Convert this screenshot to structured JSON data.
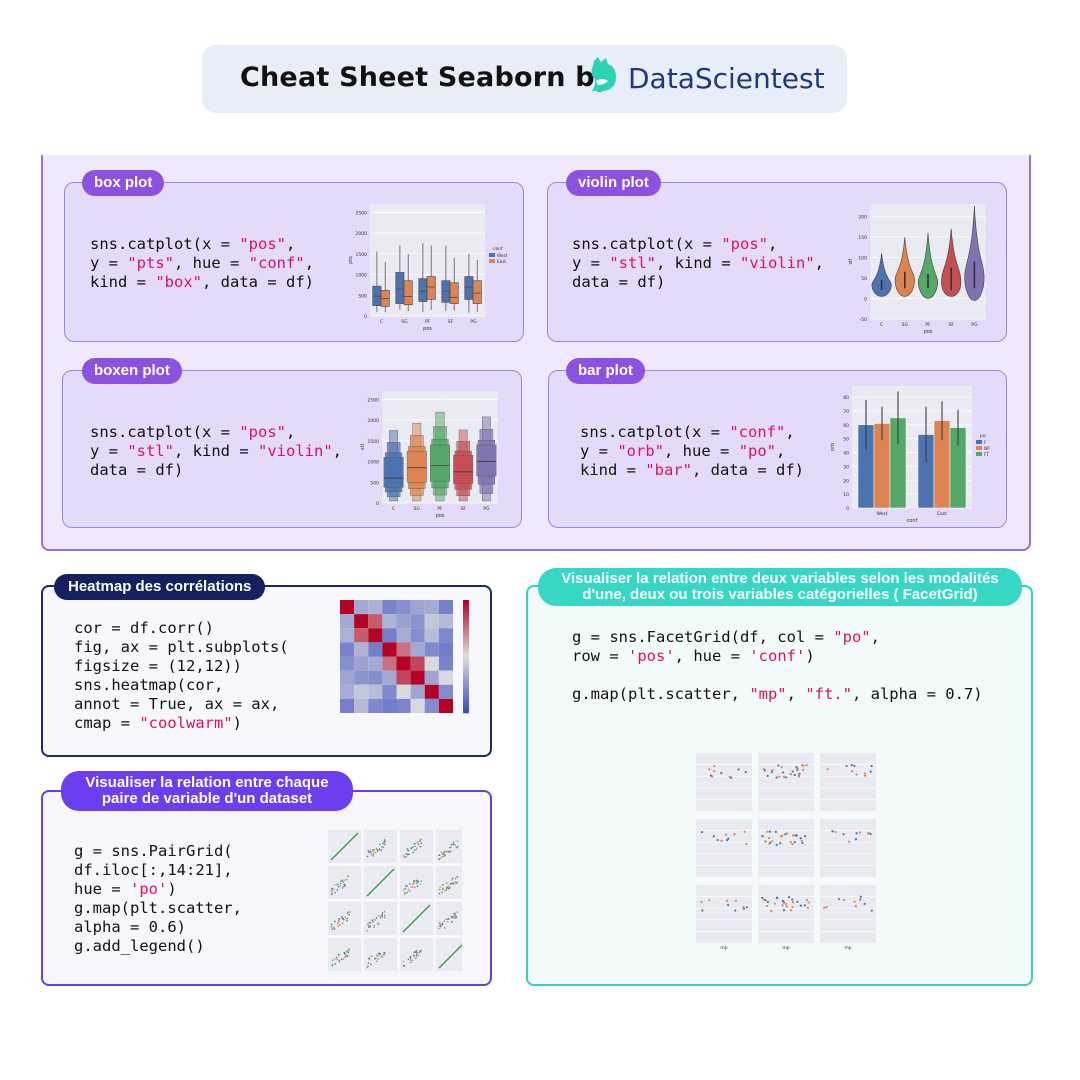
{
  "header": {
    "title": "Cheat Sheet Seaborn by",
    "brand": "DataScientest"
  },
  "cards": {
    "box": {
      "label": "box plot",
      "code": [
        [
          [
            "t",
            "sns.catplot(x "
          ],
          [
            "t",
            "= "
          ],
          [
            "s",
            "\"pos\""
          ],
          [
            "t",
            ","
          ]
        ],
        [
          [
            "t",
            "y "
          ],
          [
            "t",
            "= "
          ],
          [
            "s",
            "\"pts\""
          ],
          [
            "t",
            ", hue "
          ],
          [
            "t",
            "= "
          ],
          [
            "s",
            "\"conf\""
          ],
          [
            "t",
            ","
          ]
        ],
        [
          [
            "t",
            "kind "
          ],
          [
            "t",
            "= "
          ],
          [
            "s",
            "\"box\""
          ],
          [
            "t",
            ", data "
          ],
          [
            "t",
            "= "
          ],
          [
            "t",
            "df)"
          ]
        ]
      ]
    },
    "violin": {
      "label": "violin plot",
      "code": [
        [
          [
            "t",
            "sns.catplot(x "
          ],
          [
            "t",
            "= "
          ],
          [
            "s",
            "\"pos\""
          ],
          [
            "t",
            ","
          ]
        ],
        [
          [
            "t",
            "y "
          ],
          [
            "t",
            "= "
          ],
          [
            "s",
            "\"stl\""
          ],
          [
            "t",
            ", kind "
          ],
          [
            "t",
            "= "
          ],
          [
            "s",
            "\"violin\""
          ],
          [
            "t",
            ","
          ]
        ],
        [
          [
            "t",
            "data "
          ],
          [
            "t",
            "= "
          ],
          [
            "t",
            "df)"
          ]
        ]
      ]
    },
    "boxen": {
      "label": "boxen plot",
      "code": [
        [
          [
            "t",
            "sns.catplot(x "
          ],
          [
            "t",
            "= "
          ],
          [
            "s",
            "\"pos\""
          ],
          [
            "t",
            ","
          ]
        ],
        [
          [
            "t",
            "y "
          ],
          [
            "t",
            "= "
          ],
          [
            "s",
            "\"stl\""
          ],
          [
            "t",
            ", kind "
          ],
          [
            "t",
            "= "
          ],
          [
            "s",
            "\"violin\""
          ],
          [
            "t",
            ","
          ]
        ],
        [
          [
            "t",
            "data "
          ],
          [
            "t",
            "= "
          ],
          [
            "t",
            "df)"
          ]
        ]
      ]
    },
    "bar": {
      "label": "bar plot",
      "code": [
        [
          [
            "t",
            "sns.catplot(x "
          ],
          [
            "t",
            "= "
          ],
          [
            "s",
            "\"conf\""
          ],
          [
            "t",
            ","
          ]
        ],
        [
          [
            "t",
            "y "
          ],
          [
            "t",
            "= "
          ],
          [
            "s",
            "\"orb\""
          ],
          [
            "t",
            ", hue "
          ],
          [
            "t",
            "= "
          ],
          [
            "s",
            "\"po\""
          ],
          [
            "t",
            ","
          ]
        ],
        [
          [
            "t",
            "kind "
          ],
          [
            "t",
            "= "
          ],
          [
            "s",
            "\"bar\""
          ],
          [
            "t",
            ", data "
          ],
          [
            "t",
            "= "
          ],
          [
            "t",
            "df)"
          ]
        ]
      ]
    },
    "heatmap": {
      "label": "Heatmap des corrélations",
      "code": [
        [
          [
            "t",
            "cor = df.corr()"
          ]
        ],
        [
          [
            "t",
            "fig, ax = plt.subplots("
          ]
        ],
        [
          [
            "t",
            "figsize = (12,12))"
          ]
        ],
        [
          [
            "t",
            "sns.heatmap(cor,"
          ]
        ],
        [
          [
            "t",
            "annot = True, ax = ax,"
          ]
        ],
        [
          [
            "t",
            "cmap = "
          ],
          [
            "s",
            "\"coolwarm\""
          ],
          [
            "t",
            ")"
          ]
        ]
      ]
    },
    "pair": {
      "label_line1": "Visualiser la relation entre chaque",
      "label_line2": "paire de variable d'un dataset",
      "code": [
        [
          [
            "t",
            "g = sns.PairGrid("
          ]
        ],
        [
          [
            "t",
            "df.iloc[:,14:21],"
          ]
        ],
        [
          [
            "t",
            "hue = "
          ],
          [
            "s",
            "'po'"
          ],
          [
            "t",
            ")"
          ]
        ],
        [
          [
            "t",
            "g.map(plt.scatter,"
          ]
        ],
        [
          [
            "t",
            "alpha = 0.6)"
          ]
        ],
        [
          [
            "t",
            "g.add_legend()"
          ]
        ]
      ]
    },
    "facet": {
      "label_line1": "Visualiser la relation entre deux variables selon les modalités",
      "label_line2": "d'une, deux ou trois variables catégorielles ( FacetGrid)",
      "code": [
        [
          [
            "t",
            "g = sns.FacetGrid(df, col = "
          ],
          [
            "s",
            "\"po\""
          ],
          [
            "t",
            ","
          ]
        ],
        [
          [
            "t",
            "row = "
          ],
          [
            "s",
            "'pos'"
          ],
          [
            "t",
            ", hue = "
          ],
          [
            "s",
            "'conf'"
          ],
          [
            "t",
            ")"
          ]
        ],
        [
          [
            "t",
            ""
          ]
        ],
        [
          [
            "t",
            "g.map(plt.scatter, "
          ],
          [
            "s",
            "\"mp\""
          ],
          [
            "t",
            ", "
          ],
          [
            "s",
            "\"ft.\""
          ],
          [
            "t",
            ", alpha = 0.7)"
          ]
        ]
      ]
    }
  },
  "chart_data": [
    {
      "id": "box",
      "type": "box",
      "categories": [
        "C",
        "SG",
        "PF",
        "SF",
        "PG"
      ],
      "xlabel": "pos",
      "ylabel": "pts",
      "yticks": [
        0,
        500,
        1000,
        1500,
        2000,
        2500
      ],
      "ylim": [
        0,
        2700
      ],
      "legend": {
        "title": "conf",
        "entries": [
          "West",
          "East"
        ]
      },
      "colors": [
        "#4c72b0",
        "#dd8452"
      ],
      "series": [
        {
          "name": "West",
          "boxes": [
            [
              100,
              250,
              480,
              720,
              1550
            ],
            [
              150,
              300,
              650,
              1050,
              1700
            ],
            [
              100,
              350,
              600,
              900,
              1750
            ],
            [
              120,
              330,
              600,
              850,
              1700
            ],
            [
              80,
              400,
              700,
              950,
              1500
            ]
          ]
        },
        {
          "name": "East",
          "boxes": [
            [
              90,
              230,
              420,
              620,
              1300
            ],
            [
              120,
              270,
              470,
              850,
              1500
            ],
            [
              150,
              400,
              700,
              950,
              1700
            ],
            [
              130,
              300,
              450,
              800,
              1400
            ],
            [
              100,
              300,
              550,
              850,
              1350
            ]
          ]
        }
      ]
    },
    {
      "id": "violin",
      "type": "violin",
      "categories": [
        "C",
        "SG",
        "PF",
        "SF",
        "PG"
      ],
      "xlabel": "pos",
      "ylabel": "stl",
      "yticks": [
        -50,
        0,
        50,
        100,
        150,
        200
      ],
      "ylim": [
        -50,
        230
      ],
      "colors": [
        "#4c72b0",
        "#dd8452",
        "#55a868",
        "#c44e52",
        "#8172b2"
      ],
      "series": [
        {
          "values": [
            [
              5,
              20,
              33,
              45,
              110
            ],
            [
              5,
              25,
              45,
              65,
              150
            ],
            [
              0,
              25,
              40,
              60,
              160
            ],
            [
              5,
              20,
              40,
              75,
              170
            ],
            [
              -5,
              25,
              50,
              90,
              225
            ]
          ]
        }
      ]
    },
    {
      "id": "boxen",
      "type": "boxen",
      "categories": [
        "C",
        "SG",
        "PF",
        "SF",
        "PG"
      ],
      "xlabel": "pos",
      "ylabel": "stl",
      "yticks": [
        0,
        500,
        1000,
        1500,
        2000,
        2500
      ],
      "ylim": [
        0,
        2700
      ],
      "colors": [
        "#4c72b0",
        "#dd8452",
        "#55a868",
        "#c44e52",
        "#8172b2"
      ],
      "series": [
        {
          "values": [
            [
              50,
              380,
              600,
              1100
            ],
            [
              50,
              500,
              850,
              1250
            ],
            [
              50,
              520,
              900,
              1400
            ],
            [
              50,
              470,
              750,
              1150
            ],
            [
              50,
              650,
              1000,
              1400
            ]
          ]
        }
      ]
    },
    {
      "id": "bar",
      "type": "bar",
      "categories": [
        "West",
        "East"
      ],
      "xlabel": "conf",
      "ylabel": "orb",
      "yticks": [
        0,
        10,
        20,
        30,
        40,
        50,
        60,
        70,
        80
      ],
      "ylim": [
        0,
        88
      ],
      "legend": {
        "title": "po",
        "entries": [
          "F",
          "NP",
          "FT"
        ]
      },
      "colors": [
        "#4c72b0",
        "#dd8452",
        "#55a868"
      ],
      "series": [
        {
          "name": "F",
          "values": [
            60,
            53
          ],
          "err": [
            18,
            20
          ]
        },
        {
          "name": "NP",
          "values": [
            61,
            63
          ],
          "err": [
            12,
            14
          ]
        },
        {
          "name": "FT",
          "values": [
            65,
            58
          ],
          "err": [
            19,
            13
          ]
        }
      ]
    },
    {
      "id": "heatmap",
      "type": "heatmap",
      "size": 8,
      "colormap": "coolwarm"
    },
    {
      "id": "pair",
      "type": "scatter",
      "grid": [
        4,
        4
      ],
      "colors": [
        "#55a868",
        "#dd8452",
        "#4c72b0"
      ]
    },
    {
      "id": "facet",
      "type": "scatter",
      "grid": [
        3,
        3
      ],
      "colors": [
        "#4c72b0",
        "#dd8452"
      ],
      "xlabel": "mp",
      "ylabel": "ft."
    }
  ]
}
